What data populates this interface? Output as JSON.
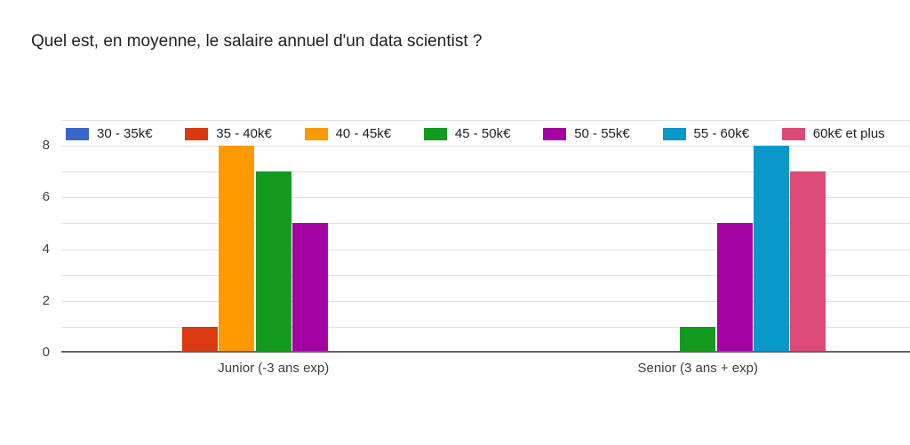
{
  "title": "Quel est, en moyenne, le salaire annuel d'un data scientist ?",
  "chart_data": {
    "type": "bar",
    "title": "Quel est, en moyenne, le salaire annuel d'un data scientist ?",
    "categories": [
      "Junior (-3 ans exp)",
      "Senior (3 ans + exp)"
    ],
    "series": [
      {
        "name": "30 - 35k€",
        "color": "#3b67c8",
        "values": [
          0,
          0
        ]
      },
      {
        "name": "35 - 40k€",
        "color": "#db3912",
        "values": [
          1,
          0
        ]
      },
      {
        "name": "40 - 45k€",
        "color": "#ff9900",
        "values": [
          8,
          0
        ]
      },
      {
        "name": "45 - 50k€",
        "color": "#129b1d",
        "values": [
          7,
          1
        ]
      },
      {
        "name": "50 - 55k€",
        "color": "#a303a3",
        "values": [
          5,
          5
        ]
      },
      {
        "name": "55 - 60k€",
        "color": "#0999c8",
        "values": [
          0,
          8
        ]
      },
      {
        "name": "60k€ et plus",
        "color": "#dd4a77",
        "values": [
          0,
          7
        ]
      }
    ],
    "y_ticks": [
      0,
      2,
      4,
      6,
      8
    ],
    "ylim": [
      0,
      9
    ],
    "grid": true,
    "legend_position": "top",
    "axis_color": "#636363",
    "gridline_color": "#e0e0e0"
  }
}
